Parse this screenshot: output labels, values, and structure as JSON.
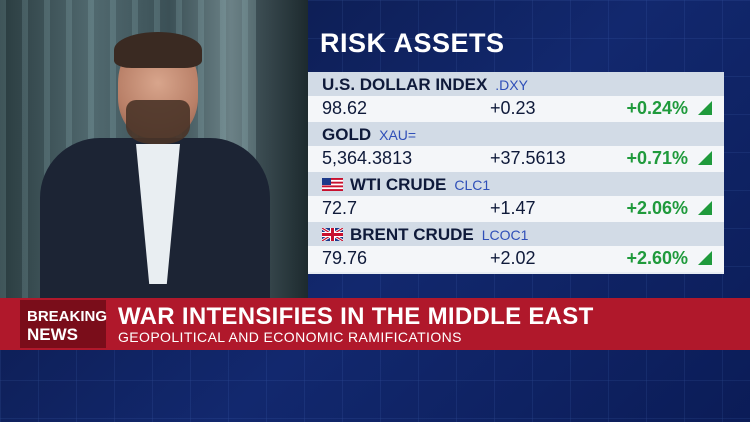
{
  "panel": {
    "title": "RISK ASSETS"
  },
  "assets": [
    {
      "name": "U.S. DOLLAR INDEX",
      "ric": ".DXY",
      "flag": "",
      "price": "98.62",
      "change": "+0.23",
      "pct": "+0.24%"
    },
    {
      "name": "GOLD",
      "ric": "XAU=",
      "flag": "",
      "price": "5,364.3813",
      "change": "+37.5613",
      "pct": "+0.71%"
    },
    {
      "name": "WTI CRUDE",
      "ric": "CLC1",
      "flag": "us-flag-icon",
      "price": "72.7",
      "change": "+1.47",
      "pct": "+2.06%"
    },
    {
      "name": "BRENT CRUDE",
      "ric": "LCOC1",
      "flag": "uk-flag-icon",
      "price": "79.76",
      "change": "+2.02",
      "pct": "+2.60%"
    }
  ],
  "banner": {
    "breaking_top": "BREAKING",
    "breaking_bottom": "NEWS",
    "headline": "WAR INTENSIFIES IN THE MIDDLE EAST",
    "subheadline": "GEOPOLITICAL AND ECONOMIC RAMIFICATIONS"
  },
  "colors": {
    "positive": "#1f9a3c",
    "banner_red": "#b0182b",
    "breaking_dark": "#7a0d1a",
    "panel_text": "#0f1a3a"
  }
}
